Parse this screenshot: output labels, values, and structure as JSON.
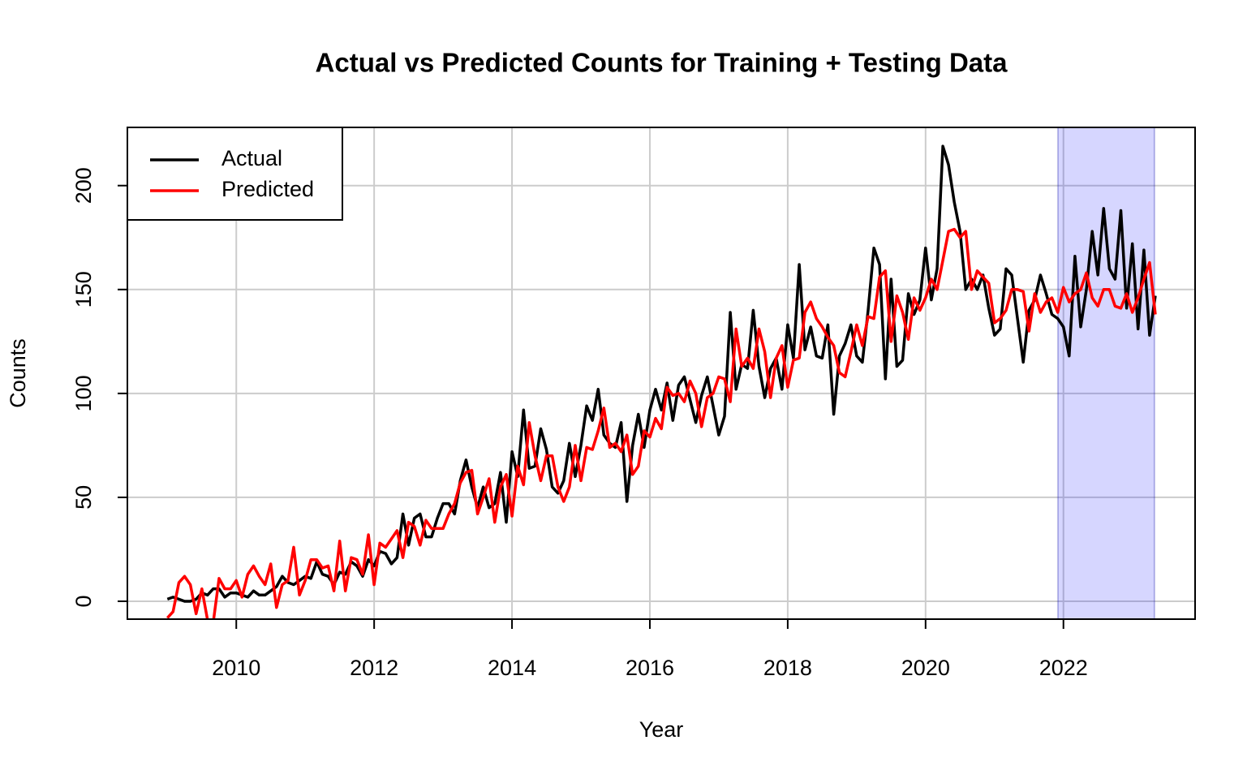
{
  "chart_data": {
    "type": "line",
    "title": "Actual vs Predicted Counts for Training + Testing Data",
    "xlabel": "Year",
    "ylabel": "Counts",
    "xlim": [
      2008.42,
      2023.91
    ],
    "ylim": [
      -8.6,
      228
    ],
    "xticks": [
      2010,
      2012,
      2014,
      2016,
      2018,
      2020,
      2022
    ],
    "yticks": [
      0,
      50,
      100,
      150,
      200
    ],
    "grid": true,
    "legend": "top-left",
    "shaded_region": [
      2021.92,
      2023.32
    ],
    "shaded_color": "rgba(0,0,255,0.16)",
    "x": [
      2009,
      2009.083,
      2009.167,
      2009.25,
      2009.333,
      2009.417,
      2009.5,
      2009.583,
      2009.667,
      2009.75,
      2009.833,
      2009.917,
      2010,
      2010.083,
      2010.167,
      2010.25,
      2010.333,
      2010.417,
      2010.5,
      2010.583,
      2010.667,
      2010.75,
      2010.833,
      2010.917,
      2011,
      2011.083,
      2011.167,
      2011.25,
      2011.333,
      2011.417,
      2011.5,
      2011.583,
      2011.667,
      2011.75,
      2011.833,
      2011.917,
      2012,
      2012.083,
      2012.167,
      2012.25,
      2012.333,
      2012.417,
      2012.5,
      2012.583,
      2012.667,
      2012.75,
      2012.833,
      2012.917,
      2013,
      2013.083,
      2013.167,
      2013.25,
      2013.333,
      2013.417,
      2013.5,
      2013.583,
      2013.667,
      2013.75,
      2013.833,
      2013.917,
      2014,
      2014.083,
      2014.167,
      2014.25,
      2014.333,
      2014.417,
      2014.5,
      2014.583,
      2014.667,
      2014.75,
      2014.833,
      2014.917,
      2015,
      2015.083,
      2015.167,
      2015.25,
      2015.333,
      2015.417,
      2015.5,
      2015.583,
      2015.667,
      2015.75,
      2015.833,
      2015.917,
      2016,
      2016.083,
      2016.167,
      2016.25,
      2016.333,
      2016.417,
      2016.5,
      2016.583,
      2016.667,
      2016.75,
      2016.833,
      2016.917,
      2017,
      2017.083,
      2017.167,
      2017.25,
      2017.333,
      2017.417,
      2017.5,
      2017.583,
      2017.667,
      2017.75,
      2017.833,
      2017.917,
      2018,
      2018.083,
      2018.167,
      2018.25,
      2018.333,
      2018.417,
      2018.5,
      2018.583,
      2018.667,
      2018.75,
      2018.833,
      2018.917,
      2019,
      2019.083,
      2019.167,
      2019.25,
      2019.333,
      2019.417,
      2019.5,
      2019.583,
      2019.667,
      2019.75,
      2019.833,
      2019.917,
      2020,
      2020.083,
      2020.167,
      2020.25,
      2020.333,
      2020.417,
      2020.5,
      2020.583,
      2020.667,
      2020.75,
      2020.833,
      2020.917,
      2021,
      2021.083,
      2021.167,
      2021.25,
      2021.333,
      2021.417,
      2021.5,
      2021.583,
      2021.667,
      2021.75,
      2021.833,
      2021.917,
      2022,
      2022.083,
      2022.167,
      2022.25,
      2022.333,
      2022.417,
      2022.5,
      2022.583,
      2022.667,
      2022.75,
      2022.833,
      2022.917,
      2023,
      2023.083,
      2023.167,
      2023.25,
      2023.333
    ],
    "series": [
      {
        "name": "Actual",
        "color": "#000000",
        "values": [
          1,
          2,
          1,
          0,
          0,
          1,
          4,
          3,
          6,
          6,
          2,
          4,
          4,
          3,
          2,
          5,
          3,
          3,
          5,
          7,
          12,
          9,
          8,
          10,
          12,
          11,
          19,
          13,
          12,
          8,
          14,
          13,
          19,
          17,
          12,
          20,
          17,
          24,
          23,
          18,
          21,
          42,
          27,
          40,
          42,
          31,
          31,
          40,
          47,
          47,
          42,
          58,
          68,
          55,
          45,
          55,
          45,
          47,
          62,
          38,
          72,
          60,
          92,
          64,
          65,
          83,
          73,
          55,
          52,
          58,
          76,
          60,
          75,
          94,
          87,
          102,
          80,
          76,
          74,
          86,
          48,
          75,
          90,
          74,
          92,
          102,
          92,
          105,
          87,
          104,
          108,
          97,
          86,
          99,
          108,
          94,
          80,
          89,
          139,
          102,
          114,
          112,
          140,
          113,
          98,
          112,
          117,
          102,
          133,
          117,
          162,
          121,
          132,
          118,
          117,
          133,
          90,
          118,
          124,
          133,
          118,
          115,
          140,
          170,
          162,
          107,
          155,
          113,
          116,
          148,
          138,
          145,
          170,
          145,
          160,
          219,
          210,
          192,
          178,
          150,
          155,
          150,
          157,
          141,
          128,
          131,
          160,
          157,
          136,
          115,
          140,
          145,
          157,
          148,
          138,
          136,
          132,
          118,
          166,
          132,
          150,
          178,
          157,
          189,
          160,
          155,
          188,
          141,
          172,
          131,
          169,
          128,
          147
        ]
      },
      {
        "name": "Predicted",
        "color": "#ff0000",
        "values": [
          -8,
          -5,
          9,
          12,
          8,
          -6,
          6,
          -9,
          -10,
          11,
          6,
          6,
          10,
          2,
          13,
          17,
          12,
          8,
          18,
          -3,
          8,
          10,
          26,
          3,
          10,
          20,
          20,
          16,
          17,
          5,
          29,
          5,
          21,
          20,
          13,
          32,
          8,
          28,
          26,
          30,
          34,
          21,
          38,
          36,
          27,
          39,
          35,
          35,
          35,
          42,
          47,
          57,
          62,
          63,
          42,
          50,
          59,
          38,
          55,
          61,
          41,
          65,
          56,
          86,
          70,
          58,
          70,
          70,
          55,
          48,
          55,
          75,
          58,
          74,
          73,
          82,
          93,
          74,
          76,
          72,
          80,
          61,
          65,
          82,
          79,
          88,
          83,
          103,
          99,
          100,
          96,
          106,
          100,
          84,
          98,
          100,
          108,
          107,
          96,
          131,
          113,
          117,
          112,
          131,
          120,
          98,
          117,
          123,
          103,
          116,
          117,
          139,
          144,
          136,
          132,
          127,
          123,
          110,
          108,
          120,
          133,
          123,
          137,
          136,
          156,
          159,
          125,
          147,
          139,
          126,
          146,
          140,
          146,
          155,
          150,
          164,
          178,
          179,
          175,
          178,
          150,
          159,
          156,
          153,
          134,
          136,
          140,
          150,
          150,
          149,
          130,
          148,
          139,
          144,
          146,
          139,
          151,
          144,
          148,
          150,
          158,
          146,
          142,
          150,
          150,
          142,
          141,
          148,
          139,
          146,
          155,
          163,
          138
        ]
      }
    ]
  }
}
